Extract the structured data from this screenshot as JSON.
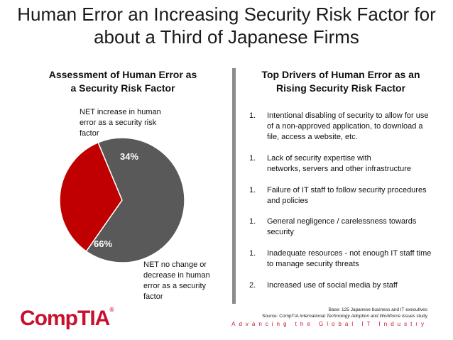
{
  "title_line1": "Human Error an Increasing Security Risk Factor for",
  "title_line2": "about a Third of Japanese Firms",
  "left_heading": [
    "Assessment of Human Error as",
    "a Security Risk Factor"
  ],
  "right_heading": [
    "Top Drivers of Human Error as an",
    "Rising Security Risk Factor"
  ],
  "chart_data": {
    "type": "pie",
    "slices": [
      {
        "label": "NET increase in human error as a security risk factor",
        "value": 34,
        "value_label": "34%",
        "color": "#c00000"
      },
      {
        "label": "NET no change or decrease in human error as a security factor",
        "value": 66,
        "value_label": "66%",
        "color": "#595959"
      }
    ]
  },
  "pie_labels": {
    "increase": [
      "NET increase in human",
      "error as a security risk",
      "factor"
    ],
    "nochange": [
      "NET no change or",
      "decrease in human",
      "error as a security",
      "factor"
    ]
  },
  "drivers": [
    {
      "num": "1.",
      "lines": [
        "Intentional disabling of security to allow for use",
        "of a non-approved application, to download a",
        "file, access a website, etc."
      ]
    },
    {
      "num": "1.",
      "lines": [
        "Lack of security expertise with",
        "networks, servers and other infrastructure"
      ]
    },
    {
      "num": "1.",
      "lines": [
        "Failure of IT staff to follow security procedures",
        "and policies"
      ]
    },
    {
      "num": "1.",
      "lines": [
        "General negligence / carelessness towards",
        "security"
      ]
    },
    {
      "num": "1.",
      "lines": [
        "Inadequate resources - not enough IT staff time",
        "to manage security threats"
      ]
    },
    {
      "num": "2.",
      "lines": [
        "Increased use of social media by staff"
      ]
    }
  ],
  "base_note": "Base: 125 Japanese business and IT executives",
  "source_prefix": "Source: CompTIA ",
  "source_italic": "International Technology Adoption and Workforce Issues",
  "source_suffix": " study",
  "tagline": "Advancing the Global IT Industry",
  "logo_text": "CompTIA",
  "logo_tm": "®",
  "colors": {
    "accent": "#c8102e",
    "divider": "#8c8c8c"
  }
}
